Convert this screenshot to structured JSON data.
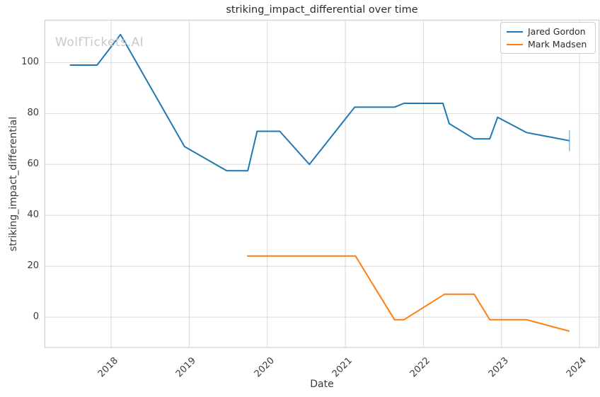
{
  "figure": {
    "title": "striking_impact_differential over time",
    "watermark": "WolfTickets.AI",
    "x_axis_label": "Date",
    "y_axis_label": "striking_impact_differential"
  },
  "legend": {
    "items": [
      {
        "label": "Jared Gordon",
        "color": "#1f77b4"
      },
      {
        "label": "Mark Madsen",
        "color": "#ff7f0e"
      }
    ]
  },
  "chart_data": {
    "type": "line",
    "title": "striking_impact_differential over time",
    "xlabel": "Date",
    "ylabel": "striking_impact_differential",
    "xlim": [
      2017.15,
      2024.25
    ],
    "ylim": [
      -11.9,
      116.7
    ],
    "x_ticks": [
      2018,
      2019,
      2020,
      2021,
      2022,
      2023,
      2024
    ],
    "y_ticks": [
      0,
      20,
      40,
      60,
      80,
      100
    ],
    "grid": true,
    "legend_position": "upper right",
    "colors": {
      "grid": "#d9d9d9",
      "spine": "#c8c8c8",
      "tick_text": "#3a3a3a"
    },
    "series": [
      {
        "name": "Jared Gordon",
        "color": "#1f77b4",
        "x": [
          2017.47,
          2017.82,
          2018.12,
          2018.94,
          2019.48,
          2019.75,
          2019.87,
          2020.16,
          2020.54,
          2021.12,
          2021.63,
          2021.75,
          2022.25,
          2022.33,
          2022.65,
          2022.85,
          2022.95,
          2023.32,
          2023.87
        ],
        "y": [
          99,
          99,
          111,
          67,
          57.5,
          57.5,
          73,
          73,
          60,
          82.5,
          82.5,
          84,
          84,
          76,
          70,
          70,
          78.5,
          72.5,
          69.3
        ],
        "error_bar": {
          "x": 2023.87,
          "y": 69.3,
          "yerr": 4.1
        }
      },
      {
        "name": "Mark Madsen",
        "color": "#ff7f0e",
        "x": [
          2019.74,
          2021.13,
          2021.63,
          2021.75,
          2022.27,
          2022.65,
          2022.85,
          2023.32,
          2023.87
        ],
        "y": [
          24,
          24,
          -1,
          -1,
          9,
          9,
          -1,
          -1,
          -5.5
        ],
        "error_bar": null
      }
    ]
  }
}
